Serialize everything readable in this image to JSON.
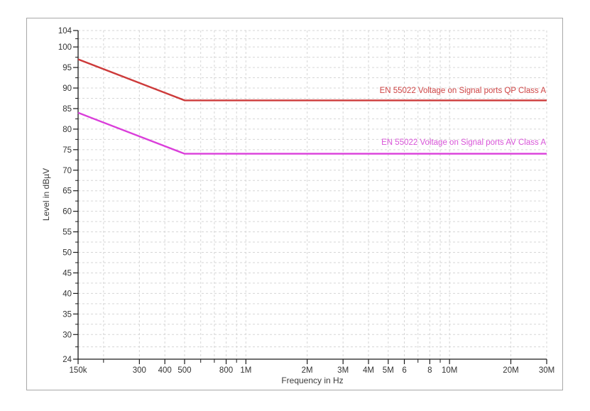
{
  "window": {
    "background": "#ffffff",
    "frame_border_color": "#a8a8a8"
  },
  "chart_data": {
    "type": "line",
    "title": "",
    "xlabel": "Frequency in Hz",
    "ylabel": "Level in dBµV",
    "x_scale": "log",
    "xlim": [
      150000,
      30000000
    ],
    "ylim": [
      24,
      104
    ],
    "grid": {
      "on": true,
      "color": "#d6d6d6",
      "dash": "3 3"
    },
    "axis_color": "#1a1a1a",
    "tick_label_color": "#333333",
    "y_major_ticks": [
      104,
      100,
      95,
      90,
      85,
      80,
      75,
      70,
      65,
      60,
      55,
      50,
      45,
      40,
      35,
      30,
      24
    ],
    "x_major_ticks": [
      {
        "f": 150000,
        "label": "150k"
      },
      {
        "f": 300000,
        "label": "300"
      },
      {
        "f": 400000,
        "label": "400"
      },
      {
        "f": 500000,
        "label": "500"
      },
      {
        "f": 800000,
        "label": "800"
      },
      {
        "f": 1000000,
        "label": "1M"
      },
      {
        "f": 2000000,
        "label": "2M"
      },
      {
        "f": 3000000,
        "label": "3M"
      },
      {
        "f": 4000000,
        "label": "4M"
      },
      {
        "f": 5000000,
        "label": "5M"
      },
      {
        "f": 6000000,
        "label": "6"
      },
      {
        "f": 8000000,
        "label": "8"
      },
      {
        "f": 10000000,
        "label": "10M"
      },
      {
        "f": 20000000,
        "label": "20M"
      },
      {
        "f": 30000000,
        "label": "30M"
      }
    ],
    "x_minor_ticks": [
      200000,
      600000,
      700000,
      900000,
      7000000,
      9000000
    ],
    "legend_position": "labels-on-lines",
    "series": [
      {
        "name": "EN 55022 Voltage on Signal ports QP Class A",
        "color": "#cd3a3a",
        "label_color": "#cf4545",
        "points": [
          [
            150000,
            97
          ],
          [
            500000,
            87
          ],
          [
            30000000,
            87
          ]
        ]
      },
      {
        "name": "EN 55022 Voltage on Signal ports AV Class A",
        "color": "#da3eda",
        "label_color": "#d955d9",
        "points": [
          [
            150000,
            84
          ],
          [
            500000,
            74
          ],
          [
            30000000,
            74
          ]
        ]
      }
    ]
  }
}
